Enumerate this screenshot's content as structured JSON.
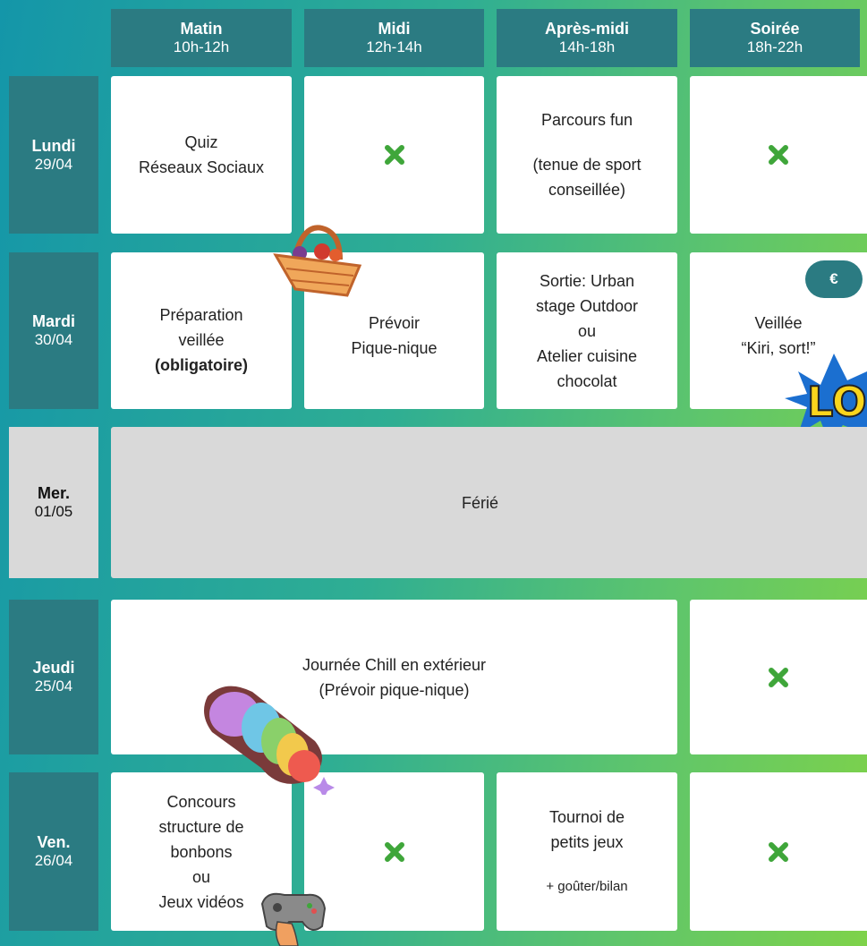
{
  "header": {
    "columns": [
      {
        "name": "Matin",
        "time": "10h-12h"
      },
      {
        "name": "Midi",
        "time": "12h-14h"
      },
      {
        "name": "Après-midi",
        "time": "14h-18h"
      },
      {
        "name": "Soirée",
        "time": "18h-22h"
      }
    ]
  },
  "rows": [
    {
      "day": "Lundi",
      "date": "29/04",
      "cells": {
        "matin": [
          "Quiz",
          "Réseaux Sociaux"
        ],
        "apres_midi": [
          "Parcours fun",
          "(tenue de sport",
          "conseillée)"
        ]
      }
    },
    {
      "day": "Mardi",
      "date": "30/04",
      "cells": {
        "matin": [
          "Préparation",
          "veillée",
          "(obligatoire)"
        ],
        "midi": [
          "Prévoir",
          "Pique-nique"
        ],
        "apres_midi": [
          "Sortie: Urban",
          "stage Outdoor",
          "ou",
          "Atelier cuisine",
          "chocolat"
        ],
        "soiree": [
          "Veillée",
          "“Kiri, sort!”"
        ]
      },
      "badge": "€",
      "sticker": "LO"
    },
    {
      "day": "Mer.",
      "date": "01/05",
      "span": [
        "Férié"
      ]
    },
    {
      "day": "Jeudi",
      "date": "25/04",
      "span": [
        "Journée Chill en extérieur",
        "(Prévoir pique-nique)"
      ]
    },
    {
      "day": "Ven.",
      "date": "26/04",
      "cells": {
        "matin": [
          "Concours",
          "structure de",
          "bonbons",
          "ou",
          "Jeux vidéos"
        ],
        "apres_midi": [
          "Tournoi de",
          "petits jeux",
          "+ goûter/bilan"
        ]
      }
    }
  ]
}
